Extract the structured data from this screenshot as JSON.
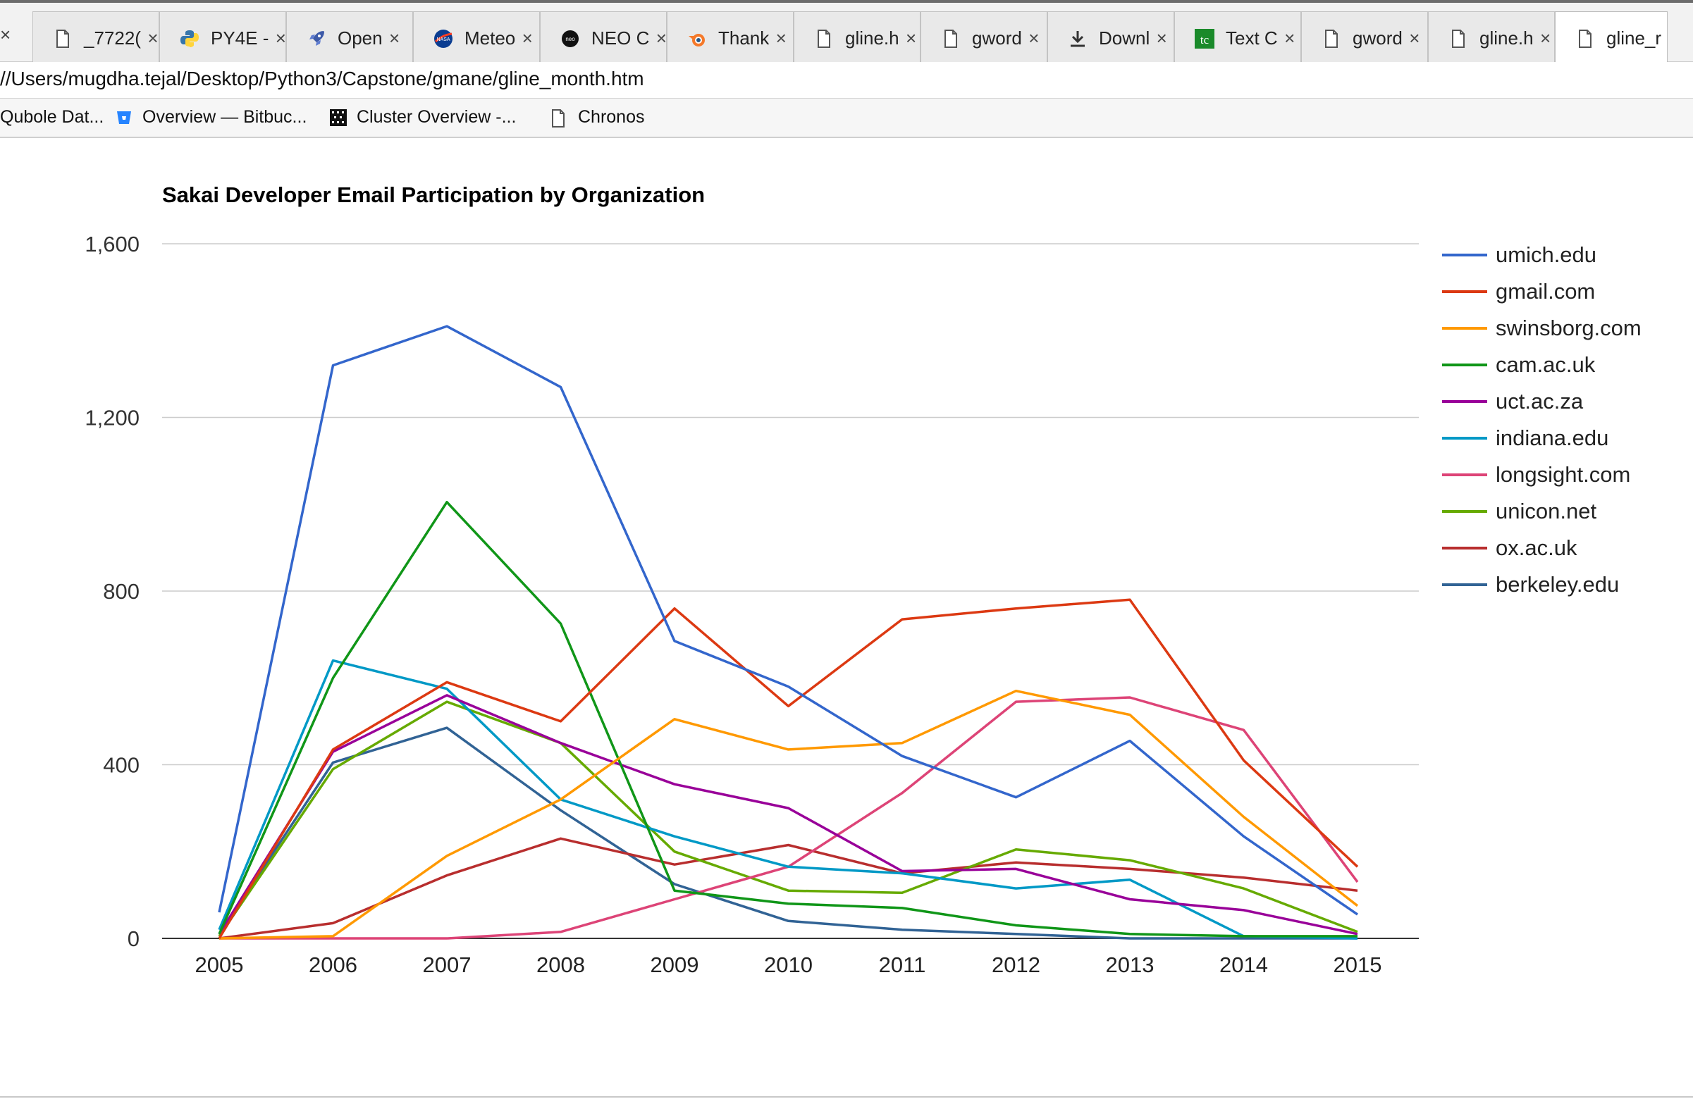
{
  "browser": {
    "tabs": [
      {
        "label": "_7722(",
        "icon": "document-icon"
      },
      {
        "label": "PY4E -",
        "icon": "python-icon"
      },
      {
        "label": "Open",
        "icon": "rocket-icon"
      },
      {
        "label": "Meteo",
        "icon": "nasa-icon"
      },
      {
        "label": "NEO C",
        "icon": "neo-icon"
      },
      {
        "label": "Thank",
        "icon": "blender-icon"
      },
      {
        "label": "gline.h",
        "icon": "document-icon"
      },
      {
        "label": "gword",
        "icon": "document-icon"
      },
      {
        "label": "Downl",
        "icon": "download-icon"
      },
      {
        "label": "Text C",
        "icon": "tc-icon"
      },
      {
        "label": "gword",
        "icon": "document-icon"
      },
      {
        "label": "gline.h",
        "icon": "document-icon"
      },
      {
        "label": "gline_r",
        "icon": "document-icon"
      }
    ],
    "address": "//Users/mugdha.tejal/Desktop/Python3/Capstone/gmane/gline_month.htm",
    "bookmarks": [
      {
        "label": "Qubole Dat...",
        "icon": ""
      },
      {
        "label": "Overview — Bitbuc...",
        "icon": "bitbucket-icon"
      },
      {
        "label": "Cluster Overview -...",
        "icon": "cluster-icon"
      },
      {
        "label": "Chronos",
        "icon": "document-icon"
      }
    ],
    "colors": {
      "tab_strip": "#f2f2f2",
      "active_tab": "#ffffff"
    }
  },
  "chart_data": {
    "type": "line",
    "title": "Sakai Developer Email Participation by Organization",
    "xlabel": "",
    "ylabel": "",
    "categories": [
      "2005",
      "2006",
      "2007",
      "2008",
      "2009",
      "2010",
      "2011",
      "2012",
      "2013",
      "2014",
      "2015"
    ],
    "ylim": [
      0,
      1600
    ],
    "yticks": [
      "0",
      "400",
      "800",
      "1,200",
      "1,600"
    ],
    "yticks_values": [
      0,
      400,
      800,
      1200,
      1600
    ],
    "grid": true,
    "legend": "right",
    "series": [
      {
        "name": "umich.edu",
        "color": "#3366cc",
        "values": [
          60,
          1320,
          1410,
          1270,
          685,
          580,
          420,
          325,
          455,
          235,
          55
        ]
      },
      {
        "name": "gmail.com",
        "color": "#dc3912",
        "values": [
          0,
          435,
          590,
          500,
          760,
          535,
          735,
          760,
          780,
          410,
          165
        ]
      },
      {
        "name": "swinsborg.com",
        "color": "#ff9900",
        "values": [
          0,
          5,
          190,
          320,
          505,
          435,
          450,
          570,
          515,
          280,
          75
        ]
      },
      {
        "name": "cam.ac.uk",
        "color": "#109618",
        "values": [
          10,
          600,
          1005,
          725,
          110,
          80,
          70,
          30,
          10,
          5,
          5
        ]
      },
      {
        "name": "uct.ac.za",
        "color": "#990099",
        "values": [
          10,
          430,
          560,
          450,
          355,
          300,
          155,
          160,
          90,
          65,
          10
        ]
      },
      {
        "name": "indiana.edu",
        "color": "#0099c6",
        "values": [
          20,
          640,
          575,
          320,
          235,
          165,
          150,
          115,
          135,
          5,
          0
        ]
      },
      {
        "name": "longsight.com",
        "color": "#dd4477",
        "values": [
          0,
          0,
          0,
          15,
          90,
          165,
          335,
          545,
          555,
          480,
          130
        ]
      },
      {
        "name": "unicon.net",
        "color": "#66aa00",
        "values": [
          5,
          390,
          545,
          450,
          200,
          110,
          105,
          205,
          180,
          115,
          15
        ]
      },
      {
        "name": "ox.ac.uk",
        "color": "#b82e2e",
        "values": [
          0,
          35,
          145,
          230,
          170,
          215,
          150,
          175,
          160,
          140,
          110
        ]
      },
      {
        "name": "berkeley.edu",
        "color": "#316395",
        "values": [
          10,
          405,
          485,
          295,
          125,
          40,
          20,
          10,
          0,
          0,
          0
        ]
      }
    ]
  }
}
